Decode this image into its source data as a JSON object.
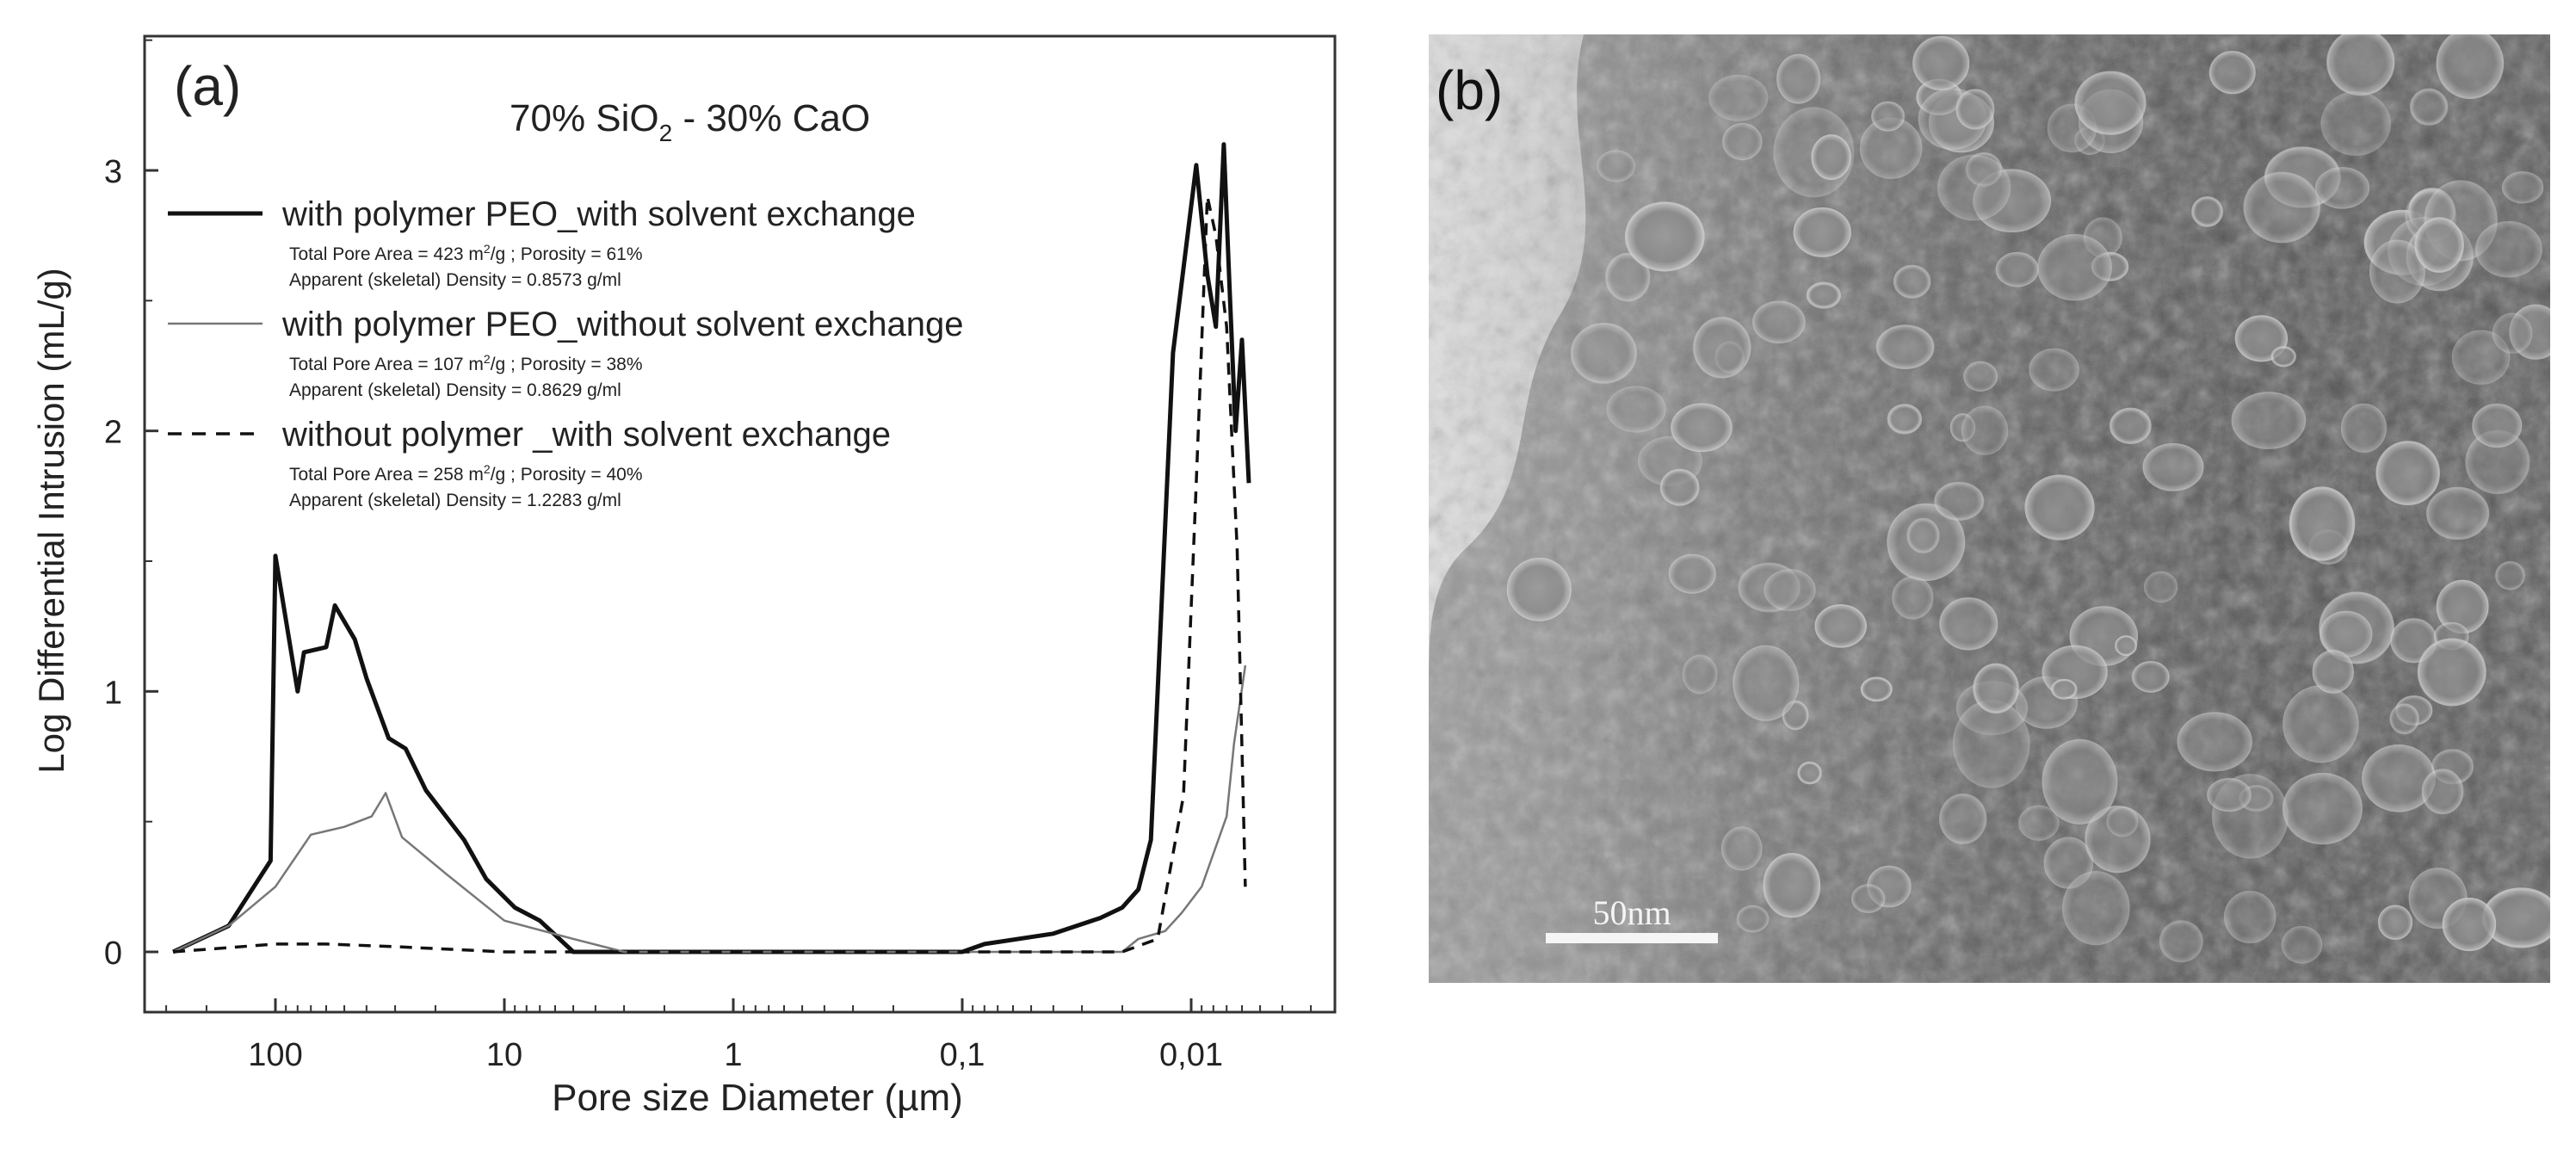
{
  "panel_a": {
    "panel_label": "(a)",
    "title_main": "70% SiO",
    "title_sub": "2",
    "title_rest": " - 30% CaO",
    "legend": [
      {
        "label": "with polymer PEO_with solvent exchange",
        "detail1": "Total Pore Area = 423 m",
        "detail1_sup": "2",
        "detail1_rest": "/g ;   Porosity = 61%",
        "detail2": "Apparent (skeletal) Density =  0.8573 g/ml"
      },
      {
        "label": "with polymer PEO_without solvent exchange",
        "detail1": "Total Pore Area = 107 m",
        "detail1_sup": "2",
        "detail1_rest": "/g ;   Porosity = 38%",
        "detail2": "Apparent (skeletal) Density =  0.8629 g/ml"
      },
      {
        "label": "without polymer _with solvent exchange",
        "detail1": "Total Pore Area = 258 m",
        "detail1_sup": "2",
        "detail1_rest": "/g ;   Porosity = 40%",
        "detail2": "Apparent (skeletal) Density =  1.2283 g/ml"
      }
    ]
  },
  "panel_b": {
    "panel_label": "(b)",
    "scale_bar_label": "50nm",
    "image_desc_icon": "tem-micrograph"
  },
  "chart_data": {
    "type": "line",
    "xlabel": "Pore size Diameter (µm)",
    "ylabel": "Log Differential Intrusion (mL/g)",
    "x_scale": "log",
    "x_reversed": true,
    "xlim": [
      300,
      0.005
    ],
    "ylim": [
      0,
      3.5
    ],
    "x_ticks": [
      100,
      10,
      1,
      0.1,
      0.01
    ],
    "x_tick_labels": [
      "100",
      "10",
      "1",
      "0,1",
      "0,01"
    ],
    "y_ticks": [
      0,
      1,
      2,
      3
    ],
    "y_tick_labels": [
      "0",
      "1",
      "2",
      "3"
    ],
    "grid": false,
    "legend_position": "top-left",
    "series": [
      {
        "name": "with polymer PEO_with solvent exchange",
        "style": "solid-thick",
        "color": "#111111",
        "points": [
          [
            280,
            0.0
          ],
          [
            160,
            0.1
          ],
          [
            105,
            0.35
          ],
          [
            100,
            1.52
          ],
          [
            80,
            1.0
          ],
          [
            75,
            1.15
          ],
          [
            60,
            1.17
          ],
          [
            55,
            1.33
          ],
          [
            45,
            1.2
          ],
          [
            40,
            1.05
          ],
          [
            32,
            0.82
          ],
          [
            27,
            0.78
          ],
          [
            22,
            0.62
          ],
          [
            15,
            0.43
          ],
          [
            12,
            0.28
          ],
          [
            9,
            0.17
          ],
          [
            7,
            0.12
          ],
          [
            5,
            0.0
          ],
          [
            0.5,
            0.0
          ],
          [
            0.1,
            0.0
          ],
          [
            0.08,
            0.03
          ],
          [
            0.04,
            0.07
          ],
          [
            0.025,
            0.13
          ],
          [
            0.02,
            0.17
          ],
          [
            0.017,
            0.24
          ],
          [
            0.015,
            0.43
          ],
          [
            0.012,
            2.3
          ],
          [
            0.0095,
            3.02
          ],
          [
            0.0085,
            2.6
          ],
          [
            0.0078,
            2.4
          ],
          [
            0.0072,
            3.1
          ],
          [
            0.0068,
            2.55
          ],
          [
            0.0064,
            2.0
          ],
          [
            0.006,
            2.35
          ],
          [
            0.0056,
            1.8
          ]
        ]
      },
      {
        "name": "with polymer PEO_without solvent exchange",
        "style": "solid-thin",
        "color": "#777777",
        "points": [
          [
            280,
            0.0
          ],
          [
            160,
            0.1
          ],
          [
            100,
            0.25
          ],
          [
            70,
            0.45
          ],
          [
            50,
            0.48
          ],
          [
            38,
            0.52
          ],
          [
            33,
            0.61
          ],
          [
            28,
            0.44
          ],
          [
            18,
            0.3
          ],
          [
            10,
            0.12
          ],
          [
            5,
            0.05
          ],
          [
            3,
            0.0
          ],
          [
            0.1,
            0.0
          ],
          [
            0.02,
            0.0
          ],
          [
            0.017,
            0.05
          ],
          [
            0.013,
            0.08
          ],
          [
            0.011,
            0.15
          ],
          [
            0.009,
            0.25
          ],
          [
            0.007,
            0.52
          ],
          [
            0.0065,
            0.8
          ],
          [
            0.0058,
            1.1
          ]
        ]
      },
      {
        "name": "without polymer _with solvent exchange",
        "style": "dashed",
        "color": "#111111",
        "points": [
          [
            280,
            0.0
          ],
          [
            100,
            0.03
          ],
          [
            60,
            0.03
          ],
          [
            30,
            0.02
          ],
          [
            10,
            0.0
          ],
          [
            1,
            0.0
          ],
          [
            0.1,
            0.0
          ],
          [
            0.02,
            0.0
          ],
          [
            0.014,
            0.05
          ],
          [
            0.0108,
            0.6
          ],
          [
            0.0095,
            1.8
          ],
          [
            0.0085,
            2.9
          ],
          [
            0.0078,
            2.75
          ],
          [
            0.007,
            2.4
          ],
          [
            0.0063,
            1.55
          ],
          [
            0.0058,
            0.25
          ]
        ]
      }
    ]
  }
}
